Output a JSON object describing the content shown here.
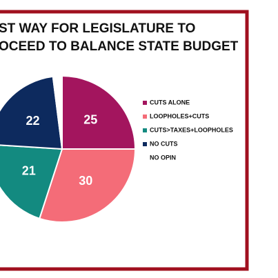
{
  "chart_data": {
    "type": "pie",
    "title_lines": [
      "ST WAY FOR LEGISLATURE TO",
      "OCEED TO BALANCE STATE BUDGET"
    ],
    "categories": [
      "CUTS ALONE",
      "LOOPHOLES+CUTS",
      "CUTS>TAXES+LOOPHOLES",
      "NO CUTS",
      "NO OPIN"
    ],
    "values": [
      25,
      30,
      21,
      22,
      2
    ],
    "value_labels": [
      "25",
      "30",
      "21",
      "22",
      null
    ],
    "colors": [
      "#a3155e",
      "#f46c78",
      "#138a80",
      "#0d2a5e",
      "#ffffff"
    ]
  }
}
